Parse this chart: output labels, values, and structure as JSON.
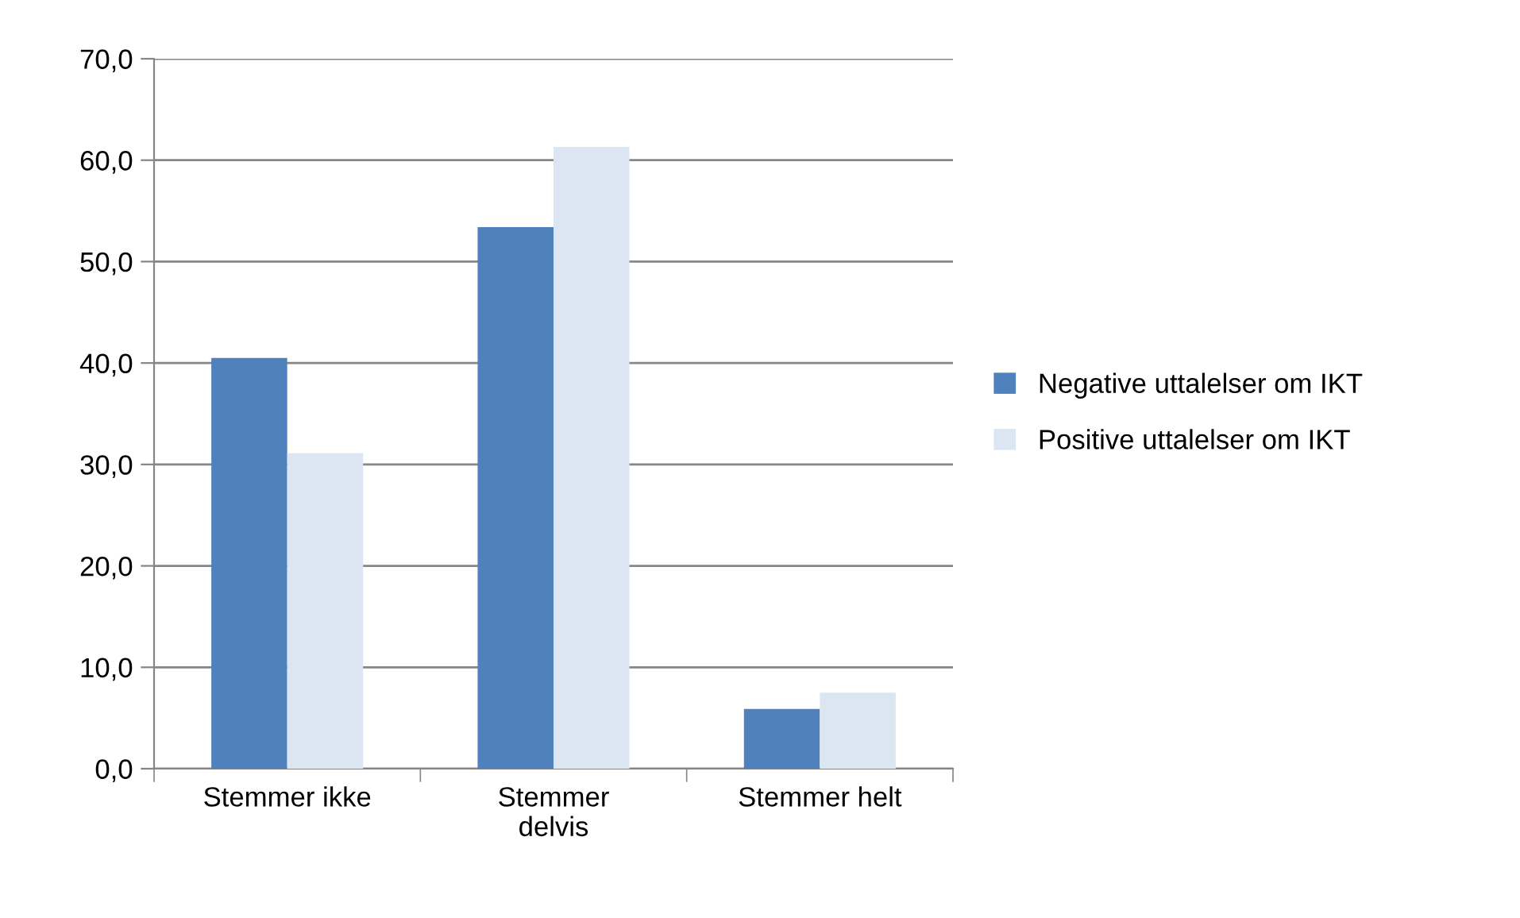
{
  "chart_data": {
    "type": "bar",
    "categories": [
      "Stemmer ikke",
      "Stemmer\ndelvis",
      "Stemmer helt"
    ],
    "series": [
      {
        "name": "Negative uttalelser om IKT",
        "color": "#4f81bd",
        "values": [
          40.5,
          53.4,
          5.9
        ]
      },
      {
        "name": "Positive uttalelser om IKT",
        "color": "#dce6f2",
        "values": [
          31.1,
          61.3,
          7.5
        ]
      }
    ],
    "ylim": [
      0,
      70
    ],
    "yticks": [
      {
        "value": 0,
        "label": "0,0"
      },
      {
        "value": 10,
        "label": "10,0"
      },
      {
        "value": 20,
        "label": "20,0"
      },
      {
        "value": 30,
        "label": "30,0"
      },
      {
        "value": 40,
        "label": "40,0"
      },
      {
        "value": 50,
        "label": "50,0"
      },
      {
        "value": 60,
        "label": "60,0"
      },
      {
        "value": 70,
        "label": "70,0"
      }
    ],
    "grid": "y",
    "legend": "right"
  }
}
